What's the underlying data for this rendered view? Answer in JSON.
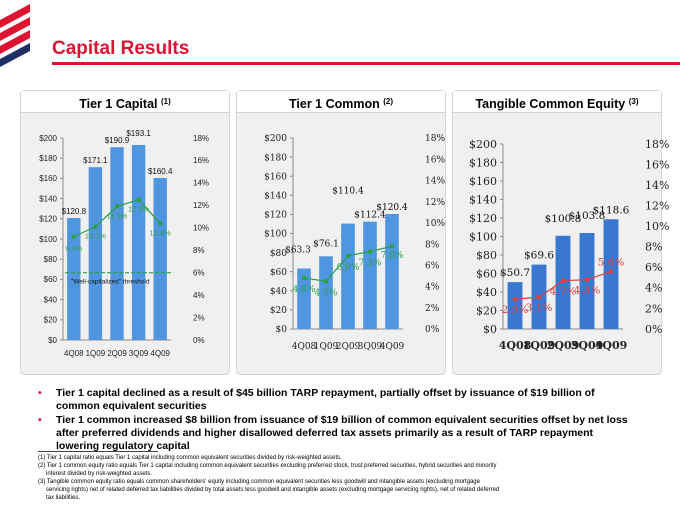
{
  "page": {
    "title": "Capital Results"
  },
  "colors": {
    "brand_red": "#dc1431",
    "bar_light": "#4f95e0",
    "bar_dark": "#3a78cf",
    "line_green": "#2aa046",
    "line_red": "#d9413a"
  },
  "chart_data": [
    {
      "type": "bar",
      "title": "Tier 1 Capital",
      "title_note": "(1)",
      "categories": [
        "4Q08",
        "1Q09",
        "2Q09",
        "3Q09",
        "4Q09"
      ],
      "series": [
        {
          "name": "Tier 1 Capital ($B)",
          "values": [
            120.8,
            171.1,
            190.9,
            193.1,
            160.4
          ],
          "labels": [
            "$120.8",
            "$171.1",
            "$190.9",
            "$193.1",
            "$160.4"
          ]
        },
        {
          "name": "Tier 1 Capital ratio (%)",
          "kind": "line",
          "axis": "right",
          "values": [
            9.2,
            10.1,
            11.9,
            12.5,
            10.4
          ],
          "labels": [
            "9.2%",
            "10.1%",
            "11.9%",
            "12.5%",
            "10.4%"
          ]
        }
      ],
      "threshold": {
        "label": "\"Well-capitalized\" threshold",
        "value": 6
      },
      "ylim": [
        0,
        200
      ],
      "y_ticks": [
        "$200",
        "$180",
        "$160",
        "$140",
        "$120",
        "$100",
        "$80",
        "$60",
        "$40",
        "$20",
        "$0"
      ],
      "y2lim": [
        0,
        18
      ],
      "y2_ticks": [
        "18%",
        "16%",
        "14%",
        "12%",
        "10%",
        "8%",
        "6%",
        "4%",
        "2%",
        "0%"
      ]
    },
    {
      "type": "bar",
      "title": "Tier 1 Common",
      "title_note": "(2)",
      "categories": [
        "4Q08",
        "1Q09",
        "2Q09",
        "3Q09",
        "4Q09"
      ],
      "series": [
        {
          "name": "Tier 1 Common ($B)",
          "values": [
            63.3,
            76.1,
            110.4,
            112.4,
            120.4
          ],
          "labels": [
            "$63.3",
            "$76.1",
            "$110.4",
            "$112.4",
            "$120.4"
          ]
        },
        {
          "name": "Tier 1 Common ratio (%)",
          "kind": "line",
          "axis": "right",
          "values": [
            4.8,
            4.5,
            6.9,
            7.3,
            7.8
          ],
          "labels": [
            "4.8%",
            "4.5%",
            "6.9%",
            "7.3%",
            "7.8%"
          ]
        }
      ],
      "ylim": [
        0,
        200
      ],
      "y_ticks": [
        "$200",
        "$180",
        "$160",
        "$140",
        "$120",
        "$100",
        "$80",
        "$60",
        "$40",
        "$20",
        "$0"
      ],
      "y2lim": [
        0,
        18
      ],
      "y2_ticks": [
        "18%",
        "16%",
        "14%",
        "12%",
        "10%",
        "8%",
        "6%",
        "4%",
        "2%",
        "0%"
      ]
    },
    {
      "type": "bar",
      "title": "Tangible Common Equity",
      "title_note": "(3)",
      "categories": [
        "4Q08",
        "1Q09",
        "2Q09",
        "3Q09",
        "4Q09"
      ],
      "series": [
        {
          "name": "Tangible Common Equity ($B)",
          "values": [
            50.7,
            69.6,
            100.8,
            103.8,
            118.6
          ],
          "labels": [
            "$50.7",
            "$69.6",
            "$100.8",
            "$103.8",
            "$118.6"
          ]
        },
        {
          "name": "Tangible Common Equity ratio (%)",
          "kind": "line",
          "axis": "right",
          "values": [
            2.9,
            3.1,
            4.7,
            4.8,
            5.6
          ],
          "labels": [
            "2.9%",
            "3.1%",
            "4.7%",
            "4.8%",
            "5.6%"
          ]
        }
      ],
      "ylim": [
        0,
        200
      ],
      "y_ticks": [
        "$200",
        "$180",
        "$160",
        "$140",
        "$120",
        "$100",
        "$80",
        "$60",
        "$40",
        "$20",
        "$0"
      ],
      "y2lim": [
        0,
        18
      ],
      "y2_ticks": [
        "18%",
        "16%",
        "14%",
        "12%",
        "10%",
        "8%",
        "6%",
        "4%",
        "2%",
        "0%"
      ]
    }
  ],
  "bullets": [
    "Tier 1 capital declined as a result of $45 billion TARP repayment, partially offset by issuance of $19 billion of common equivalent securities",
    "Tier 1 common increased $8 billion from issuance of $19 billion of common equivalent securities offset by net loss after preferred dividends and higher disallowed deferred tax assets primarily as a result of TARP repayment lowering regulatory capital"
  ],
  "footnotes": {
    "f1": "(1) Tier 1 capital ratio equals Tier 1 capital including common equivalent securities divided by risk-weighted assets.",
    "f2a": "(2) Tier 1 common equity ratio equals Tier 1 capital including common equivalent securities excluding preferred stock, trust preferred securities, hybrid securities and minority",
    "f2b": "interest divided by risk-weighted assets.",
    "f3a": "(3) Tangible common equity ratio equals common shareholders' equity including common equivalent securities less goodwill and intangible assets (excluding mortgage",
    "f3b": "servicing rights) net of related deferred tax liabilities divided by total assets less goodwill and intangible assets (excluding mortgage servicing rights), net of related deferred",
    "f3c": "tax liabilities."
  }
}
